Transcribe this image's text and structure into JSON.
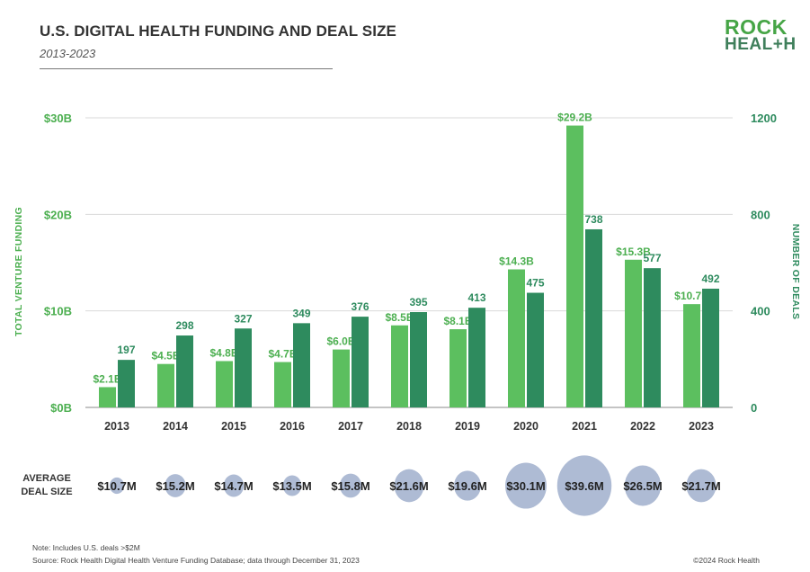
{
  "header": {
    "title": "U.S. DIGITAL HEALTH FUNDING AND DEAL SIZE",
    "subtitle": "2013-2023"
  },
  "logo": {
    "line1": "ROCK",
    "line2": "HEAL+H"
  },
  "colors": {
    "funding_bar": "#5cbf5f",
    "deals_bar": "#2e8b5e",
    "axis_text": "#4caf50",
    "axis_text_right": "#2e8b5e",
    "bubble": "#aebbd4",
    "grid": "#d9d9d9"
  },
  "chart_data": {
    "type": "bar",
    "categories": [
      "2013",
      "2014",
      "2015",
      "2016",
      "2017",
      "2018",
      "2019",
      "2020",
      "2021",
      "2022",
      "2023"
    ],
    "series": [
      {
        "axis": "left",
        "values": [
          2.1,
          4.5,
          4.8,
          4.7,
          6.0,
          8.5,
          8.1,
          14.3,
          29.2,
          15.3,
          10.7
        ],
        "labels": [
          "$2.1B",
          "$4.5B",
          "$4.8B",
          "$4.7B",
          "$6.0B",
          "$8.5B",
          "$8.1B",
          "$14.3B",
          "$29.2B",
          "$15.3B",
          "$10.7B"
        ]
      },
      {
        "axis": "right",
        "values": [
          197,
          298,
          327,
          349,
          376,
          395,
          413,
          475,
          738,
          577,
          492
        ],
        "labels": [
          "197",
          "298",
          "327",
          "349",
          "376",
          "395",
          "413",
          "475",
          "738",
          "577",
          "492"
        ]
      }
    ],
    "ylabel": "TOTAL VENTURE FUNDING",
    "ylabel_right": "NUMBER OF DEALS",
    "ylim": [
      0,
      30
    ],
    "ylim_right": [
      0,
      1200
    ],
    "yticks": [
      "$0B",
      "$10B",
      "$20B",
      "$30B"
    ],
    "yticks_right": [
      "0",
      "400",
      "800",
      "1200"
    ],
    "grid": true,
    "bubbles": {
      "row_label_line1": "AVERAGE",
      "row_label_line2": "DEAL SIZE",
      "values": [
        10.7,
        15.2,
        14.7,
        13.5,
        15.8,
        21.6,
        19.6,
        30.1,
        39.6,
        26.5,
        21.7
      ],
      "labels": [
        "$10.7M",
        "$15.2M",
        "$14.7M",
        "$13.5M",
        "$15.8M",
        "$21.6M",
        "$19.6M",
        "$30.1M",
        "$39.6M",
        "$26.5M",
        "$21.7M"
      ]
    }
  },
  "footer": {
    "note": "Note: Includes U.S. deals >$2M",
    "source": "Source: Rock Health Digital Health Venture Funding Database; data through December 31, 2023",
    "copyright": "©2024 Rock Health"
  }
}
